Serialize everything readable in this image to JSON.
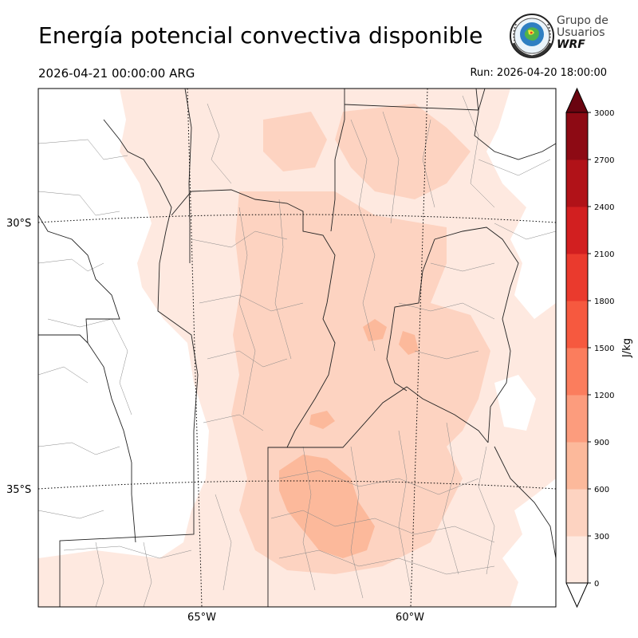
{
  "header": {
    "title": "Energía potencial convectiva disponible",
    "valid_time": "2026-04-21 00:00:00 ARG",
    "run_label": "Run: 2026-04-20 18:00:00"
  },
  "logo": {
    "line1": "Grupo de",
    "line2": "Usuarios",
    "line3": "WRF",
    "icon": "globe-seal-icon"
  },
  "map": {
    "lat_labels": [
      "30°S",
      "35°S"
    ],
    "lon_labels": [
      "65°W",
      "60°W"
    ]
  },
  "colorbar": {
    "unit": "J/kg",
    "levels": [
      0,
      300,
      600,
      900,
      1200,
      1500,
      1800,
      2100,
      2400,
      2700,
      3000
    ],
    "tick_labels": [
      "0",
      "300",
      "600",
      "900",
      "1200",
      "1500",
      "1800",
      "2100",
      "2400",
      "2700",
      "3000"
    ],
    "colors": [
      "#fee9e0",
      "#fdd3c1",
      "#fcb99b",
      "#fc9c7d",
      "#fb7d5d",
      "#f6593f",
      "#ea3a2d",
      "#d21f20",
      "#b11218",
      "#8d0a14"
    ],
    "over_color": "#6a0410"
  }
}
